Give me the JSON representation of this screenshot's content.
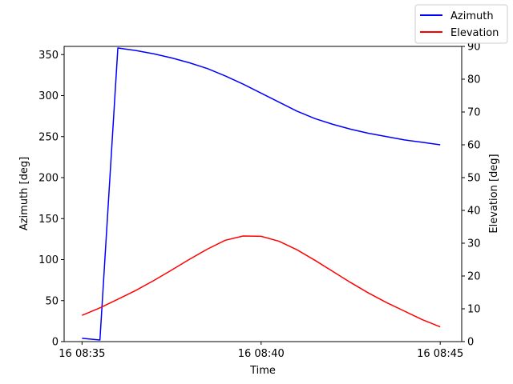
{
  "chart_data": {
    "type": "line",
    "xlabel": "Time",
    "ylabel_left": "Azimuth [deg]",
    "ylabel_right": "Elevation [deg]",
    "x_ticks": [
      "16 08:35",
      "16 08:40",
      "16 08:45"
    ],
    "x_range_minutes": [
      -0.5,
      10.6
    ],
    "ylim_left": [
      0,
      360
    ],
    "ylim_right": [
      0,
      90
    ],
    "y_ticks_left": [
      0,
      50,
      100,
      150,
      200,
      250,
      300,
      350
    ],
    "y_ticks_right": [
      0,
      10,
      20,
      30,
      40,
      50,
      60,
      70,
      80,
      90
    ],
    "grid": false,
    "legend_position": "top-right",
    "x_minutes": [
      0,
      0.5,
      1,
      1.5,
      2,
      2.5,
      3,
      3.5,
      4,
      4.5,
      5,
      5.5,
      6,
      6.5,
      7,
      7.5,
      8,
      8.5,
      9,
      9.5,
      10
    ],
    "series": [
      {
        "name": "Azimuth",
        "axis": "left",
        "color": "#0000ff",
        "values": [
          4,
          2,
          358,
          355,
          351,
          346,
          340,
          333,
          324,
          314,
          303,
          292,
          281,
          272,
          265,
          259,
          254,
          250,
          246,
          243,
          240
        ]
      },
      {
        "name": "Elevation",
        "axis": "right",
        "color": "#ff0000",
        "values": [
          8,
          10.3,
          12.9,
          15.6,
          18.6,
          21.8,
          25.1,
          28.2,
          30.9,
          32.2,
          32.1,
          30.6,
          28,
          24.8,
          21.4,
          18,
          14.8,
          11.9,
          9.3,
          6.7,
          4.5
        ]
      }
    ]
  }
}
